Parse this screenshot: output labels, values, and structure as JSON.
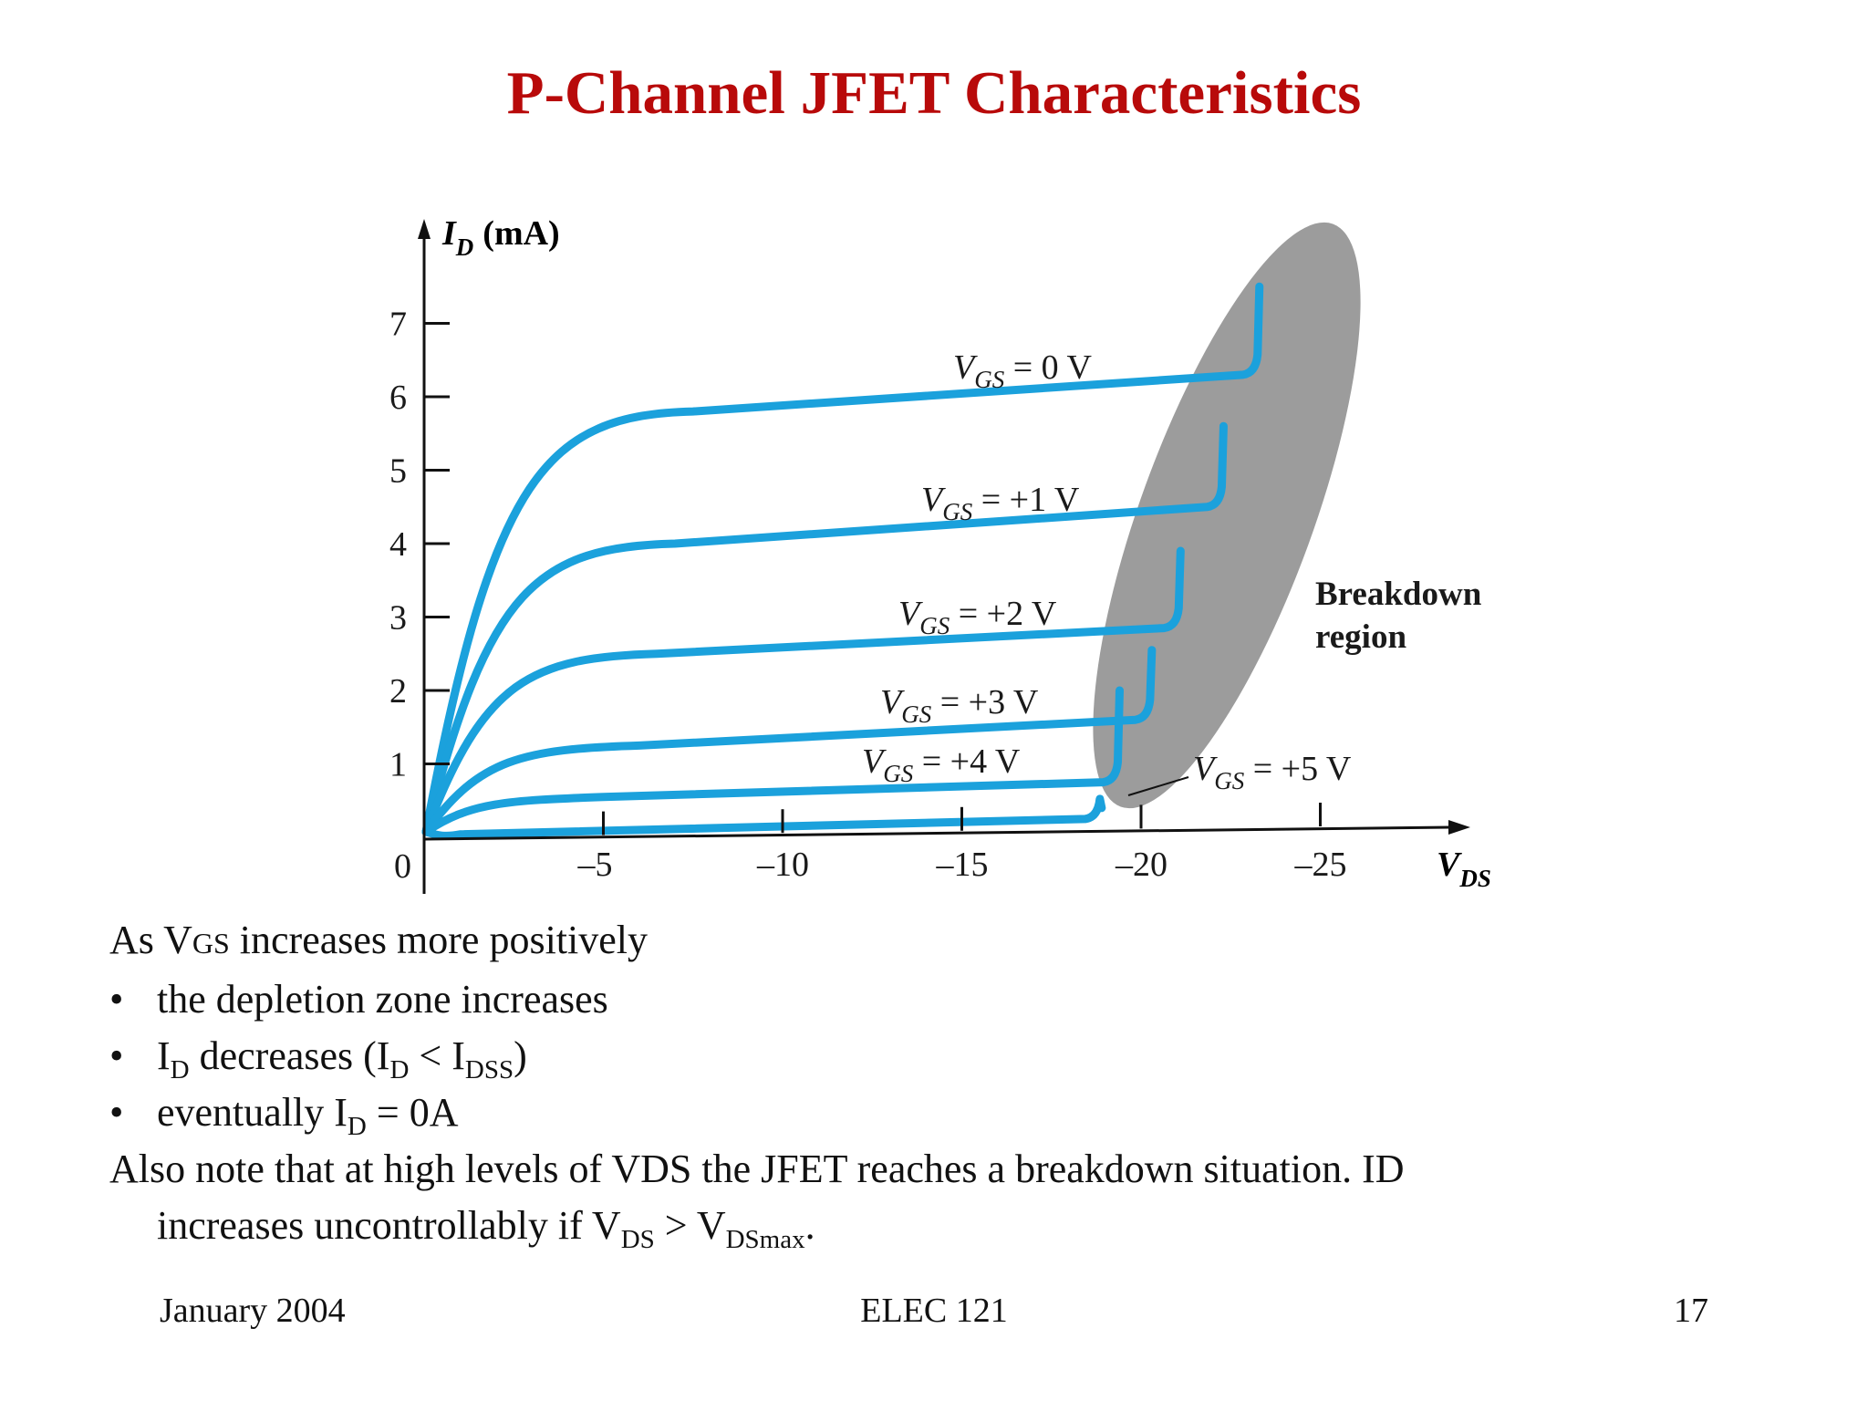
{
  "slide": {
    "title": "P-Channel JFET Characteristics",
    "title_color": "#b80a0a",
    "footer_left": "January 2004",
    "footer_center": "ELEC 121",
    "footer_right": "17"
  },
  "body": {
    "line1_pre": "As V",
    "line1_sub": "GS",
    "line1_post": " increases more positively",
    "bullet_char": "•",
    "b1": "the depletion zone increases",
    "b2_a": "I",
    "b2_a_sub": "D",
    "b2_b": " decreases (I",
    "b2_b_sub": "D",
    "b2_c": " < I",
    "b2_c_sub": "DSS",
    "b2_d": ")",
    "b3_a": "eventually I",
    "b3_a_sub": "D",
    "b3_b": " = 0A",
    "p2_line1": "Also note that at high levels of VDS the JFET reaches a breakdown situation. ID",
    "p2_line2_a": "increases uncontrollably if V",
    "p2_line2_sub1": "DS",
    "p2_line2_b": " > V",
    "p2_line2_sub2": "DSmax",
    "p2_line2_c": "."
  },
  "chart_data": {
    "type": "line",
    "y_axis_label_main": "I",
    "y_axis_label_sub": "D",
    "y_axis_label_unit": "(mA)",
    "x_axis_label_main": "V",
    "x_axis_label_sub": "DS",
    "origin_label": "0",
    "y_ticks": [
      "1",
      "2",
      "3",
      "4",
      "5",
      "6",
      "7"
    ],
    "x_ticks": [
      "–5",
      "–10",
      "–15",
      "–20",
      "–25"
    ],
    "x_tick_values": [
      -5,
      -10,
      -15,
      -20,
      -25
    ],
    "y_tick_values": [
      1,
      2,
      3,
      4,
      5,
      6,
      7
    ],
    "xlim": [
      0,
      -27
    ],
    "ylim": [
      0,
      7.8
    ],
    "curve_color": "#1ba1dc",
    "breakdown_region_color": "#9c9c9c",
    "breakdown_label_line1": "Breakdown",
    "breakdown_label_line2": "region",
    "series": [
      {
        "name_main": "V",
        "name_sub": "GS",
        "name_post": " = 0 V",
        "i_sat": 5.8,
        "i_end": 6.3,
        "v_knee": 7.5,
        "v_bd": 23.2,
        "i_top": 7.5
      },
      {
        "name_main": "V",
        "name_sub": "GS",
        "name_post": " = +1 V",
        "i_sat": 4.0,
        "i_end": 4.5,
        "v_knee": 7.0,
        "v_bd": 22.2,
        "i_top": 5.6
      },
      {
        "name_main": "V",
        "name_sub": "GS",
        "name_post": " = +2 V",
        "i_sat": 2.5,
        "i_end": 2.85,
        "v_knee": 6.5,
        "v_bd": 21.0,
        "i_top": 3.9
      },
      {
        "name_main": "V",
        "name_sub": "GS",
        "name_post": " = +3 V",
        "i_sat": 1.25,
        "i_end": 1.6,
        "v_knee": 6.0,
        "v_bd": 20.2,
        "i_top": 2.55
      },
      {
        "name_main": "V",
        "name_sub": "GS",
        "name_post": " = +4 V",
        "i_sat": 0.55,
        "i_end": 0.75,
        "v_knee": 5.0,
        "v_bd": 19.3,
        "i_top": 2.0
      },
      {
        "name_main": "V",
        "name_sub": "GS",
        "name_post": " = +5 V",
        "i_sat": 0.04,
        "i_end": 0.25,
        "v_knee": 1.0,
        "v_bd": 18.8,
        "i_top": 0.4
      }
    ]
  }
}
